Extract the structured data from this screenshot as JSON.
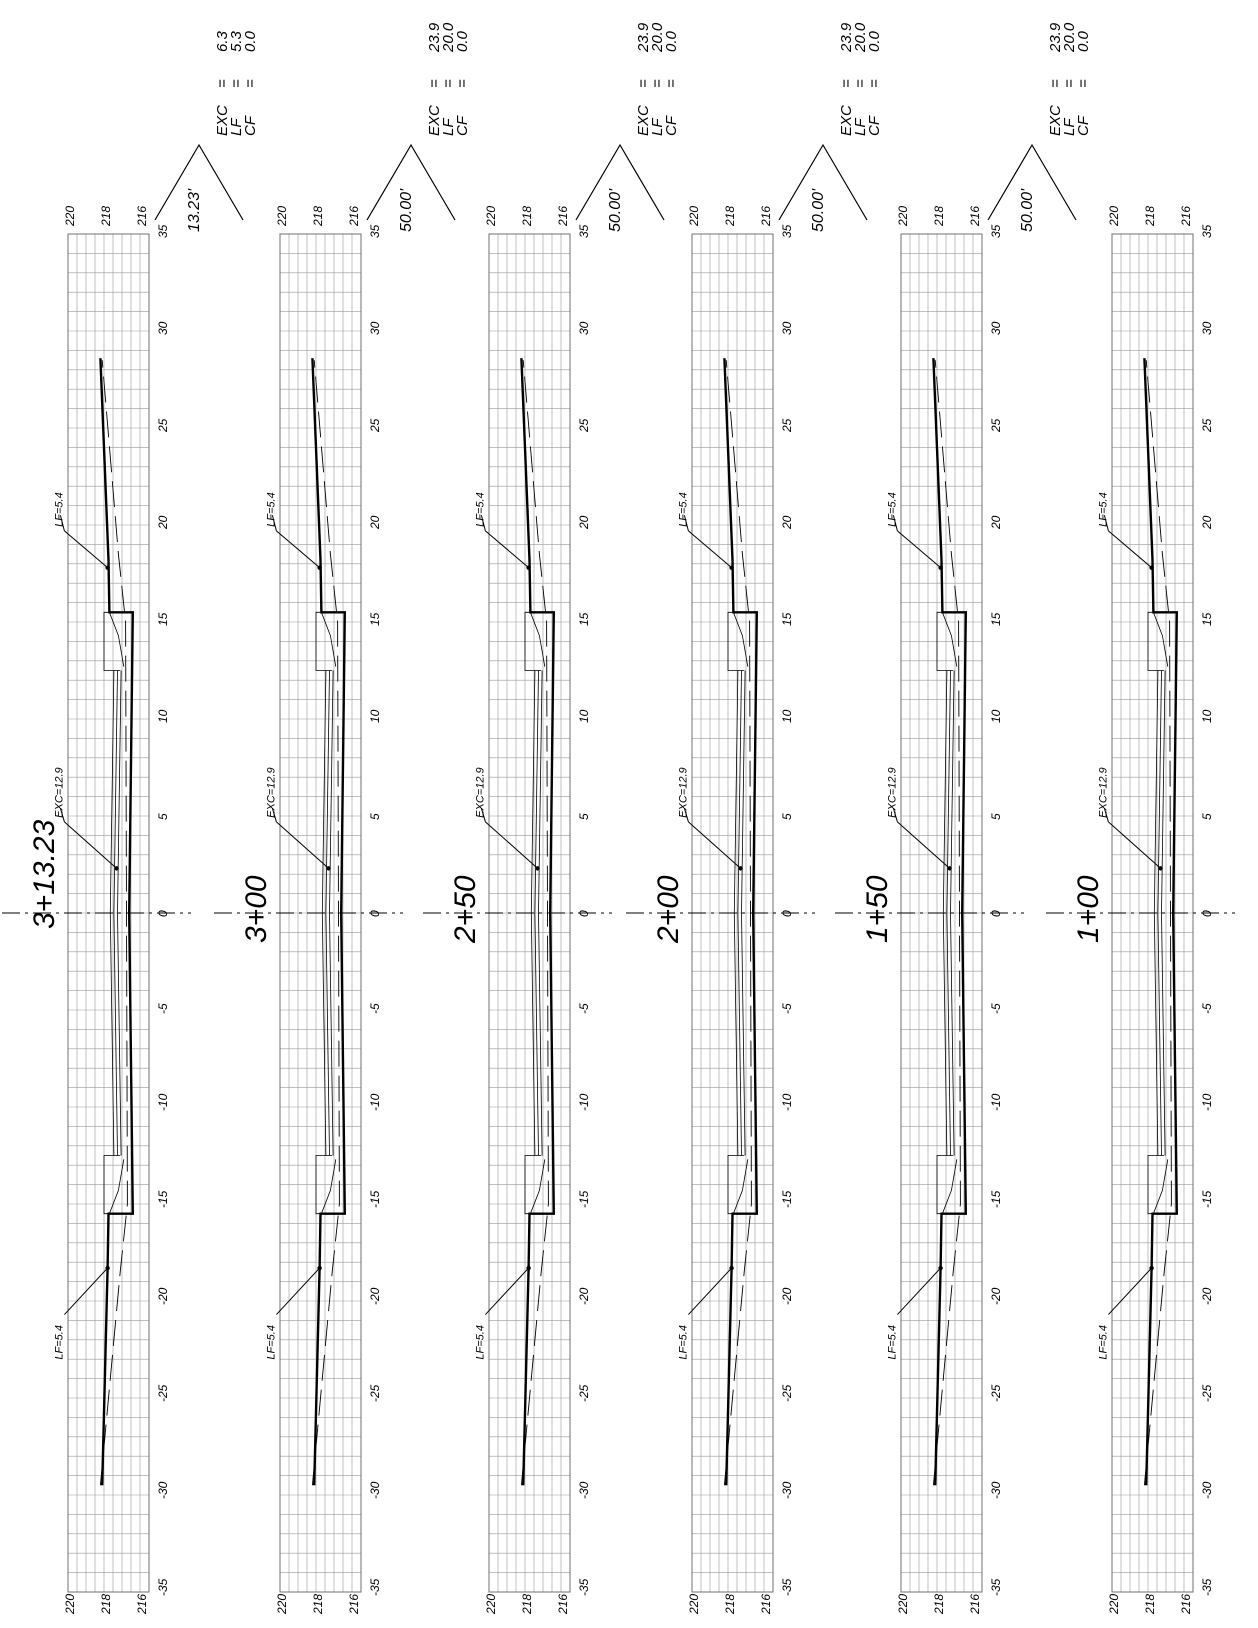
{
  "offset_ticks": [
    "35",
    "30",
    "25",
    "20",
    "15",
    "10",
    "5",
    "0",
    "-5",
    "-10",
    "-15",
    "-20",
    "-25",
    "-30",
    "-35"
  ],
  "elevation_ticks": [
    "220",
    "218",
    "216"
  ],
  "volume_labels": [
    "EXC",
    "LF",
    "CF"
  ],
  "sections": [
    {
      "station": "3+13.23",
      "distance": "13.23'",
      "exc": "6.3",
      "lf": "5.3",
      "cf": "0.0",
      "callout_exc": "EXC=12.9",
      "callout_lf_right": "LF=5.4",
      "callout_lf_left": "LF=5.4"
    },
    {
      "station": "3+00",
      "distance": "50.00'",
      "exc": "23.9",
      "lf": "20.0",
      "cf": "0.0",
      "callout_exc": "EXC=12.9",
      "callout_lf_right": "LF=5.4",
      "callout_lf_left": "LF=5.4"
    },
    {
      "station": "2+50",
      "distance": "50.00'",
      "exc": "23.9",
      "lf": "20.0",
      "cf": "0.0",
      "callout_exc": "EXC=12.9",
      "callout_lf_right": "LF=5.4",
      "callout_lf_left": "LF=5.4"
    },
    {
      "station": "2+00",
      "distance": "50.00'",
      "exc": "23.9",
      "lf": "20.0",
      "cf": "0.0",
      "callout_exc": "EXC=12.9",
      "callout_lf_right": "LF=5.4",
      "callout_lf_left": "LF=5.4"
    },
    {
      "station": "1+50",
      "distance": "50.00'",
      "exc": "23.9",
      "lf": "20.0",
      "cf": "0.0",
      "callout_exc": "EXC=12.9",
      "callout_lf_right": "LF=5.4",
      "callout_lf_left": "LF=5.4"
    },
    {
      "station": "1+00",
      "distance": "",
      "exc": "",
      "lf": "",
      "cf": "",
      "callout_exc": "EXC=12.9",
      "callout_lf_right": "LF=5.4",
      "callout_lf_left": "LF=5.4"
    }
  ]
}
